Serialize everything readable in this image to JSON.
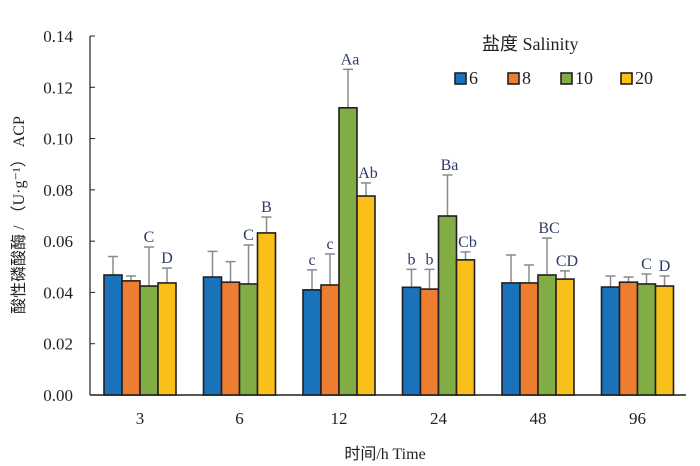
{
  "chart_data": {
    "type": "bar",
    "title": "",
    "xlabel": "时间/h Time",
    "ylabel": "酸性磷酸酶 / （U·g⁻¹） ACP",
    "ylim": [
      0,
      0.14
    ],
    "yticks": [
      "0.00",
      "0.02",
      "0.04",
      "0.06",
      "0.08",
      "0.10",
      "0.12",
      "0.14"
    ],
    "categories": [
      "3",
      "6",
      "12",
      "24",
      "48",
      "96"
    ],
    "legend": {
      "title": "盐度  Salinity",
      "position": "top-right"
    },
    "grid": false,
    "series": [
      {
        "name": "6",
        "color": "#1a72bb",
        "values": [
          0.0468,
          0.046,
          0.041,
          0.042,
          0.0437,
          0.0421
        ],
        "error_upper": [
          0.054,
          0.056,
          0.0488,
          0.049,
          0.0546,
          0.0464
        ],
        "labels": [
          "",
          "",
          "c",
          "b",
          "",
          ""
        ]
      },
      {
        "name": "8",
        "color": "#ed7d31",
        "values": [
          0.0445,
          0.044,
          0.0429,
          0.0413,
          0.0437,
          0.044
        ],
        "error_upper": [
          0.0464,
          0.052,
          0.055,
          0.049,
          0.0507,
          0.046
        ],
        "labels": [
          "",
          "",
          "c",
          "b",
          "",
          ""
        ]
      },
      {
        "name": "10",
        "color": "#82ad45",
        "values": [
          0.0425,
          0.0433,
          0.112,
          0.0698,
          0.0468,
          0.0433
        ],
        "error_upper": [
          0.0577,
          0.0585,
          0.127,
          0.0858,
          0.0612,
          0.0472
        ],
        "labels": [
          "C",
          "C",
          "Aa",
          "Ba",
          "BC",
          "C"
        ]
      },
      {
        "name": "20",
        "color": "#f8c018",
        "values": [
          0.0437,
          0.0632,
          0.0776,
          0.0527,
          0.0452,
          0.0425
        ],
        "error_upper": [
          0.0495,
          0.0694,
          0.0827,
          0.0558,
          0.0484,
          0.0464
        ],
        "labels": [
          "D",
          "B",
          "Ab",
          "Cb",
          "CD",
          "D"
        ]
      }
    ]
  }
}
